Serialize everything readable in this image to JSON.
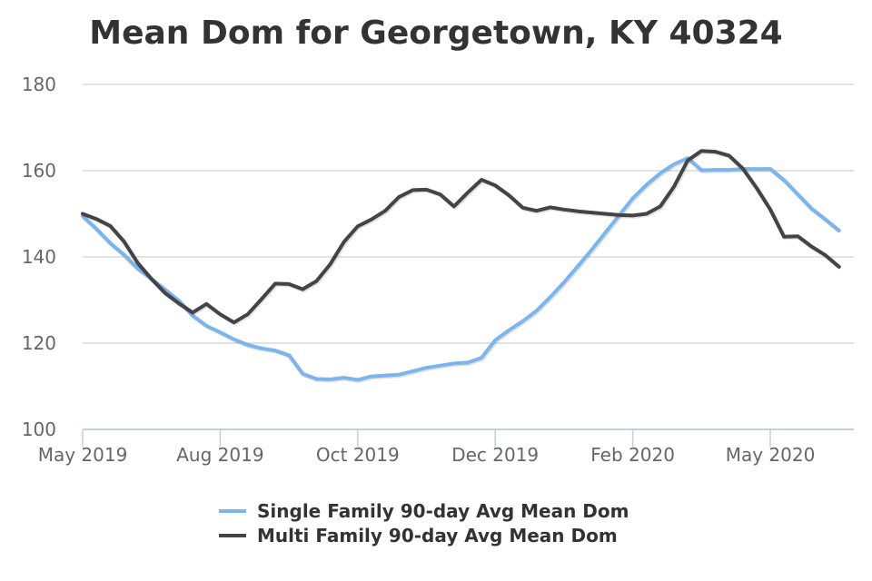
{
  "chart_data": {
    "type": "line",
    "title": "Mean Dom for Georgetown, KY 40324",
    "xlabel": "",
    "ylabel": "",
    "ylim": [
      100,
      180
    ],
    "yticks": [
      100,
      120,
      140,
      160,
      180
    ],
    "ytick_labels": [
      "100",
      "120",
      "140",
      "160",
      "180"
    ],
    "xtick_labels": [
      "May 2019",
      "Aug 2019",
      "Oct 2019",
      "Dec 2019",
      "Feb 2020",
      "May 2020"
    ],
    "xtick_index": [
      0,
      10,
      20,
      30,
      40,
      50
    ],
    "x_count": 56,
    "grid": true,
    "legend_position": "bottom-center",
    "series": [
      {
        "name": "Single Family 90-day Avg Mean Dom",
        "color": "#7cb5ec",
        "values": [
          149.4,
          146.5,
          143.2,
          140.5,
          137.3,
          134.9,
          132.4,
          129.8,
          126.4,
          124.0,
          122.5,
          120.9,
          119.6,
          118.8,
          118.3,
          117.2,
          112.9,
          111.7,
          111.6,
          112.0,
          111.5,
          112.3,
          112.5,
          112.7,
          113.5,
          114.3,
          114.8,
          115.3,
          115.5,
          116.6,
          120.7,
          123.0,
          125.1,
          127.5,
          130.7,
          134.1,
          137.8,
          141.6,
          145.6,
          149.6,
          153.6,
          156.7,
          159.4,
          161.5,
          162.9,
          160.1,
          160.2,
          160.2,
          160.4,
          160.4,
          160.4,
          157.8,
          154.5,
          151.2,
          148.7,
          146.1
        ]
      },
      {
        "name": "Multi Family 90-day Avg Mean Dom",
        "color": "#434348",
        "values": [
          150.0,
          148.8,
          147.2,
          143.6,
          138.6,
          134.9,
          131.6,
          129.2,
          127.1,
          129.1,
          126.7,
          124.8,
          126.7,
          130.2,
          133.8,
          133.7,
          132.5,
          134.4,
          138.3,
          143.5,
          147.1,
          148.7,
          150.7,
          153.9,
          155.5,
          155.6,
          154.5,
          151.7,
          154.9,
          157.9,
          156.6,
          154.3,
          151.4,
          150.7,
          151.5,
          151.0,
          150.6,
          150.3,
          150.0,
          149.7,
          149.6,
          150.0,
          151.7,
          156.3,
          162.4,
          164.6,
          164.4,
          163.5,
          160.5,
          156.0,
          151.0,
          144.7,
          144.8,
          142.4,
          140.4,
          137.7
        ]
      }
    ]
  }
}
